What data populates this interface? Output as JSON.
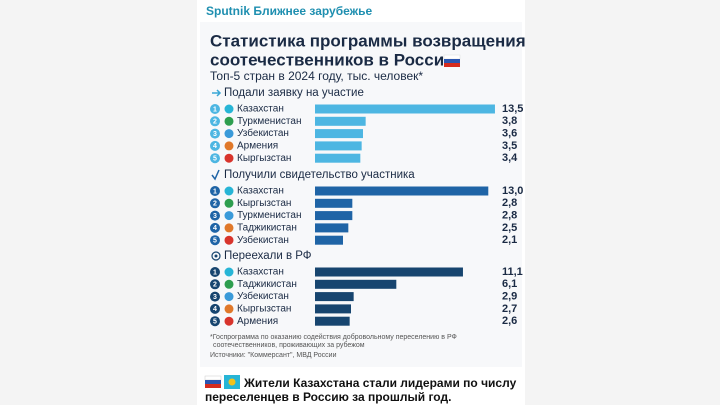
{
  "channel": "Sputnik Ближнее зарубежье",
  "infographic": {
    "title": [
      "Статистика программы возвращения",
      "соотечественников в Россию"
    ],
    "subtitle": "Топ-5 стран в 2024 году, тыс. человек*",
    "footnote": [
      "*Госпрограмма по оказанию содействия добровольному переселению в РФ",
      "соотечественников, проживающих за рубежом"
    ],
    "source": "Источники: \"Коммерсант\", МВД России"
  },
  "chart_data": [
    {
      "type": "bar",
      "title": "Подали заявку на участие",
      "ranks": [
        1,
        2,
        3,
        4,
        5
      ],
      "categories": [
        "Казахстан",
        "Туркменистан",
        "Узбекистан",
        "Армения",
        "Кыргызстан"
      ],
      "values": [
        13.5,
        3.8,
        3.6,
        3.5,
        3.4
      ],
      "value_labels": [
        "13,5",
        "3,8",
        "3,6",
        "3,5",
        "3,4"
      ],
      "color": "#4db6e2"
    },
    {
      "type": "bar",
      "title": "Получили свидетельство участника",
      "ranks": [
        1,
        2,
        3,
        4,
        5
      ],
      "categories": [
        "Казахстан",
        "Кыргызстан",
        "Туркменистан",
        "Таджикистан",
        "Узбекистан"
      ],
      "values": [
        13.0,
        2.8,
        2.8,
        2.5,
        2.1
      ],
      "value_labels": [
        "13,0",
        "2,8",
        "2,8",
        "2,5",
        "2,1"
      ],
      "color": "#1f64a6"
    },
    {
      "type": "bar",
      "title": "Переехали в РФ",
      "ranks": [
        1,
        2,
        3,
        4,
        5
      ],
      "categories": [
        "Казахстан",
        "Таджикистан",
        "Узбекистан",
        "Кыргызстан",
        "Армения"
      ],
      "values": [
        11.1,
        6.1,
        2.9,
        2.7,
        2.6
      ],
      "value_labels": [
        "11,1",
        "6,1",
        "2,9",
        "2,7",
        "2,6"
      ],
      "color": "#17456f"
    }
  ],
  "post_text": [
    "Жители Казахстана стали лидерами по числу",
    "переселенцев в Россию за прошлый год."
  ]
}
